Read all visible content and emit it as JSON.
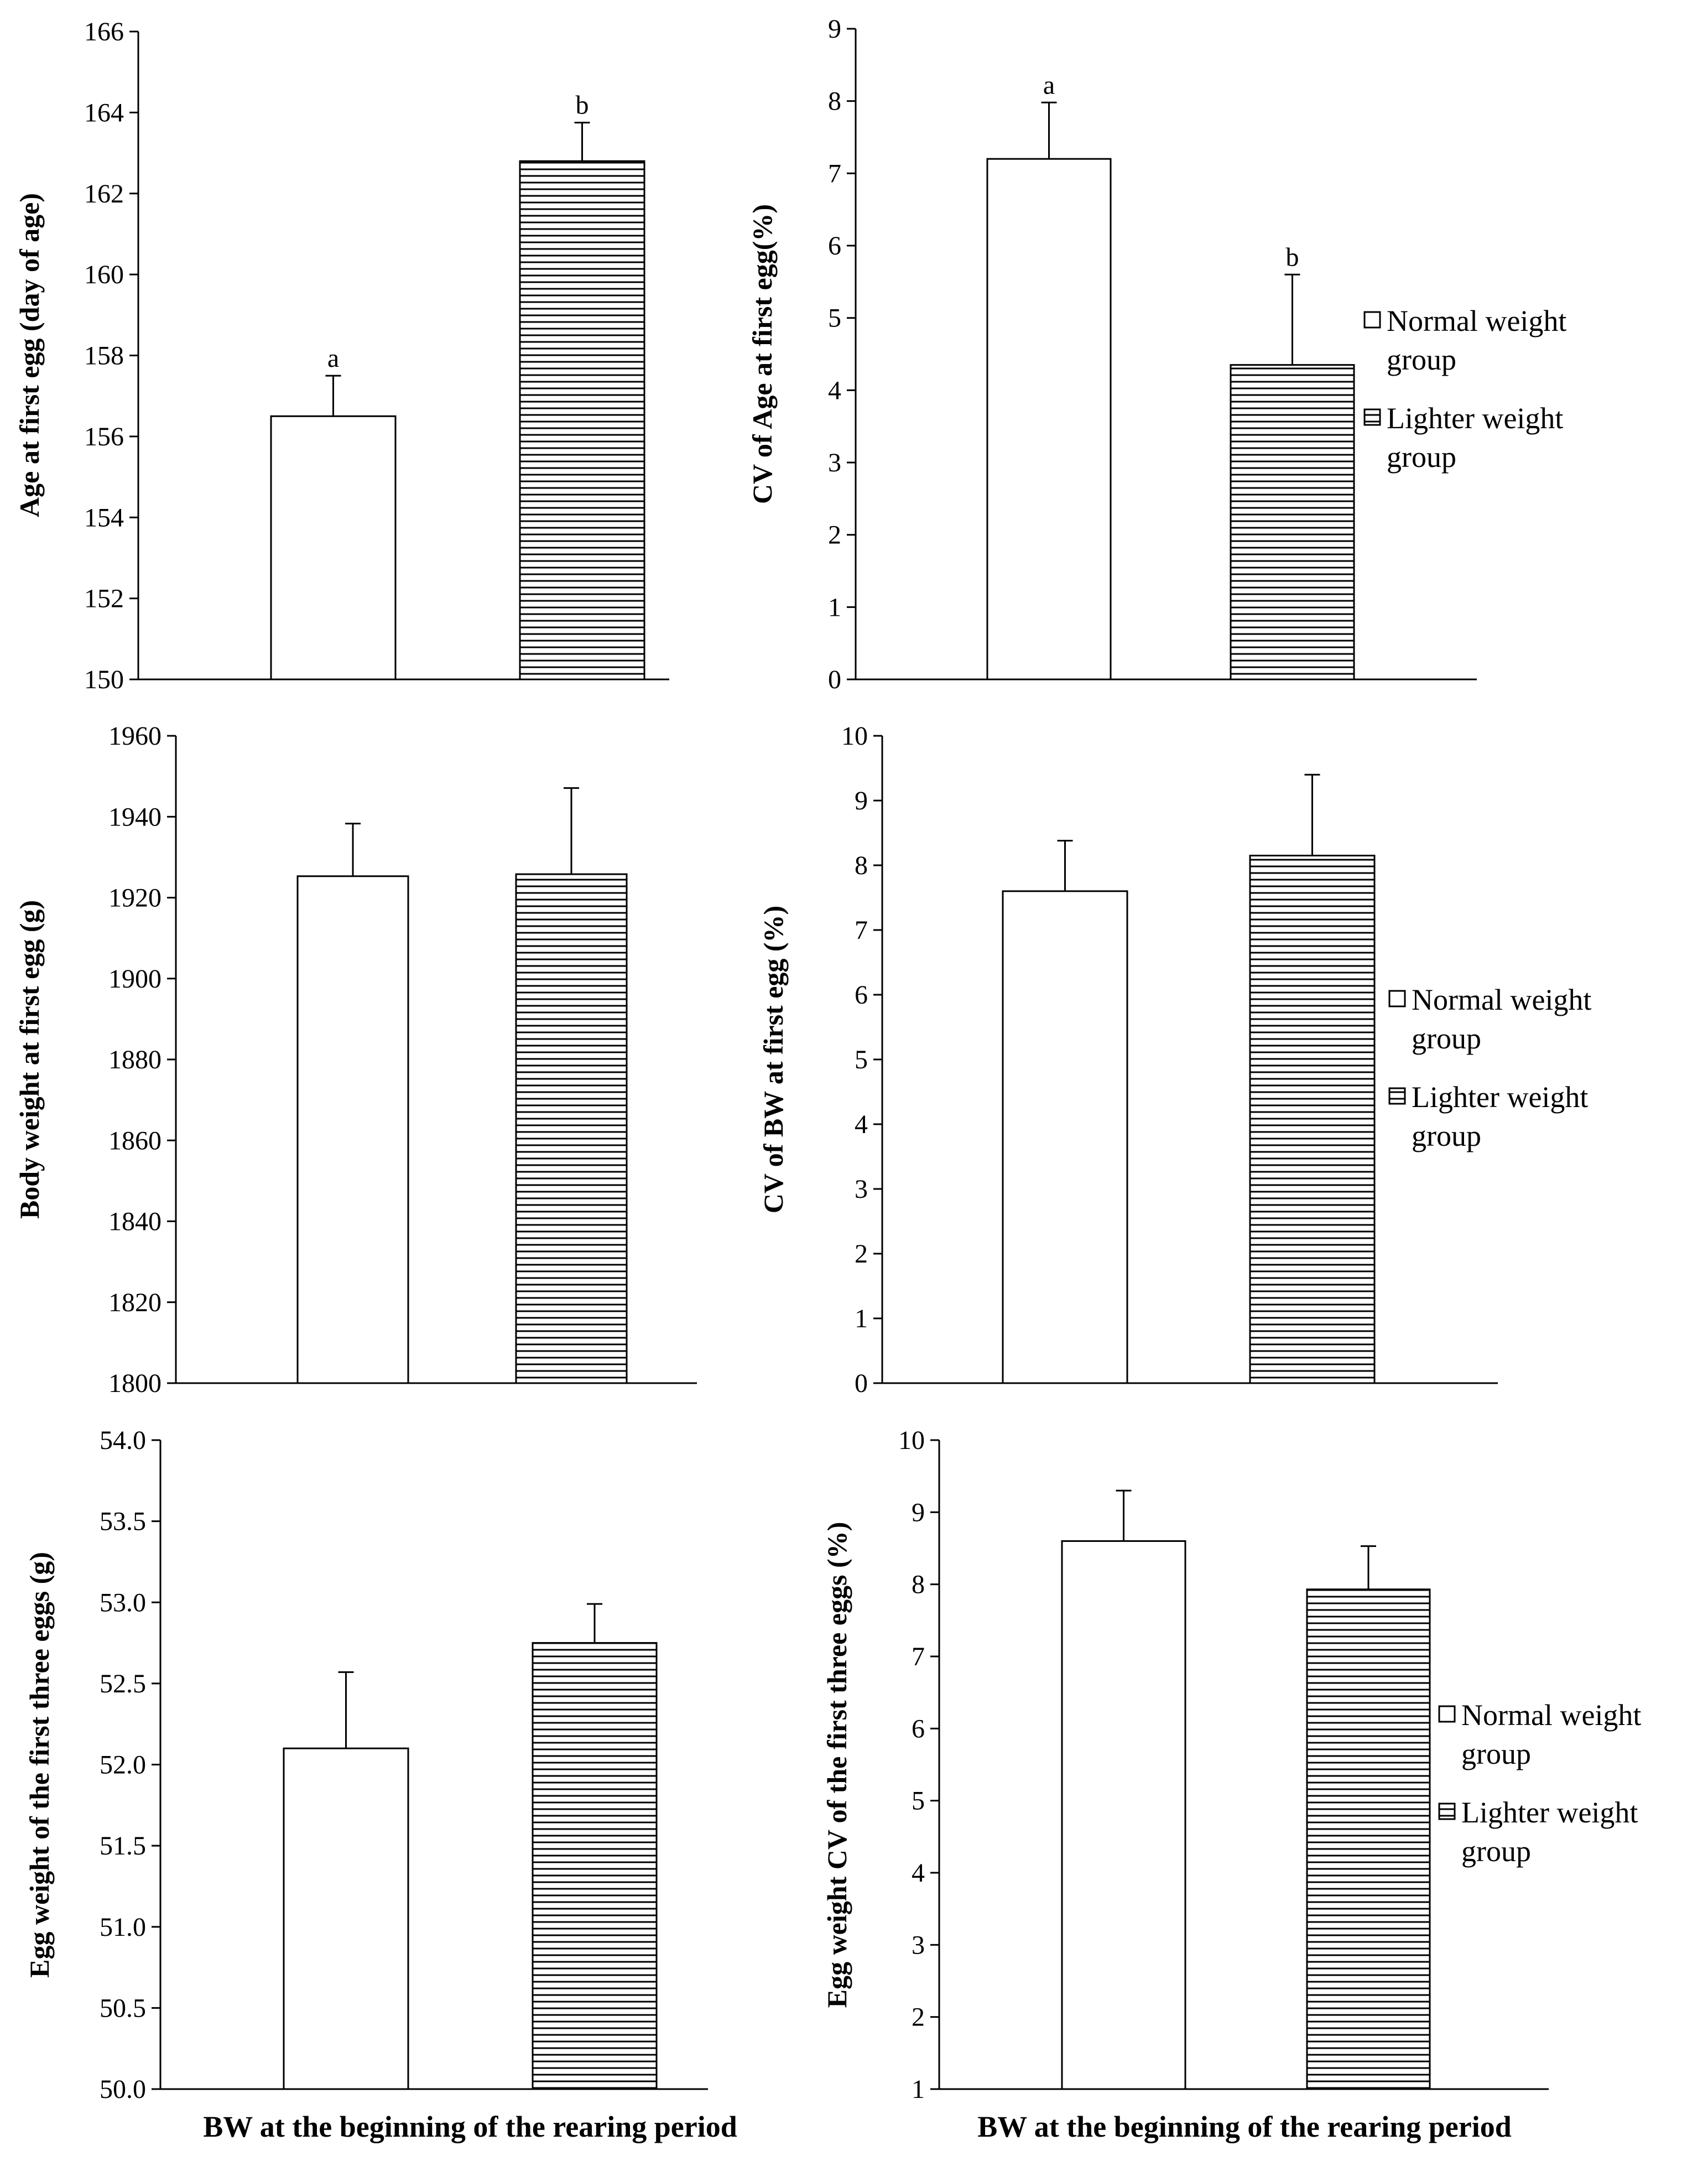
{
  "colors": {
    "ink": "#000000",
    "background": "#ffffff",
    "normal_fill": "#ffffff",
    "lighter_pattern": "#000000"
  },
  "legend": {
    "entries": [
      {
        "line1": "Normal weight",
        "line2": "group",
        "pattern": "open"
      },
      {
        "line1": "Lighter weight",
        "line2": "group",
        "pattern": "horizontal-lines"
      }
    ]
  },
  "x_title": "BW at the beginning of the rearing period",
  "chart_data": [
    {
      "type": "bar",
      "ylabel": "Age at first egg  (day of age)",
      "ylim": [
        150,
        166
      ],
      "yticks": [
        "150",
        "152",
        "154",
        "156",
        "158",
        "160",
        "162",
        "164",
        "166"
      ],
      "categories": [
        "Normal weight group",
        "Lighter weight group"
      ],
      "values": [
        156.5,
        162.8
      ],
      "errors": [
        1.0,
        0.95
      ],
      "letters": [
        "a",
        "b"
      ]
    },
    {
      "type": "bar",
      "ylabel": "CV of Age at first egg(%)",
      "ylim": [
        0,
        9
      ],
      "yticks": [
        "0",
        "1",
        "2",
        "3",
        "4",
        "5",
        "6",
        "7",
        "8",
        "9"
      ],
      "categories": [
        "Normal weight group",
        "Lighter weight group"
      ],
      "values": [
        7.2,
        4.35
      ],
      "errors": [
        0.78,
        1.25
      ],
      "letters": [
        "a",
        "b"
      ]
    },
    {
      "type": "bar",
      "ylabel": "Body weight at first egg  (g)",
      "ylim": [
        1800,
        1960
      ],
      "yticks": [
        "1800",
        "1820",
        "1840",
        "1860",
        "1880",
        "1900",
        "1920",
        "1940",
        "1960"
      ],
      "categories": [
        "Normal weight group",
        "Lighter weight group"
      ],
      "values": [
        1925.3,
        1925.8
      ],
      "errors": [
        13.0,
        21.3
      ],
      "letters": []
    },
    {
      "type": "bar",
      "ylabel": "CV of BW at first egg (%)",
      "ylim": [
        0,
        10
      ],
      "yticks": [
        "0",
        "1",
        "2",
        "3",
        "4",
        "5",
        "6",
        "7",
        "8",
        "9",
        "10"
      ],
      "categories": [
        "Normal weight group",
        "Lighter weight group"
      ],
      "values": [
        7.6,
        8.15
      ],
      "errors": [
        0.78,
        1.25
      ],
      "letters": []
    },
    {
      "type": "bar",
      "ylabel": "Egg weight of the first three eggs (g)",
      "ylim": [
        50.0,
        54.0
      ],
      "yticks": [
        "50.0",
        "50.5",
        "51.0",
        "51.5",
        "52.0",
        "52.5",
        "53.0",
        "53.5",
        "54.0"
      ],
      "categories": [
        "Normal weight group",
        "Lighter weight group"
      ],
      "values": [
        52.1,
        52.75
      ],
      "errors": [
        0.47,
        0.24
      ],
      "letters": []
    },
    {
      "type": "bar",
      "ylabel": "Egg weight CV of the first three eggs (%)",
      "ylim": [
        1,
        10
      ],
      "yticks": [
        "1",
        "2",
        "3",
        "4",
        "5",
        "6",
        "7",
        "8",
        "9",
        "10"
      ],
      "categories": [
        "Normal weight group",
        "Lighter weight group"
      ],
      "values": [
        8.6,
        7.93
      ],
      "errors": [
        0.7,
        0.6
      ],
      "letters": []
    }
  ]
}
